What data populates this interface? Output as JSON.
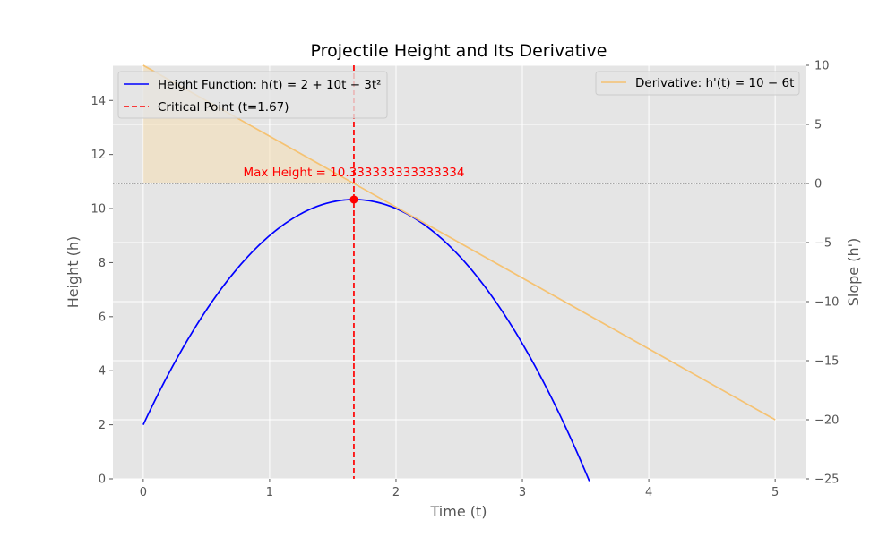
{
  "chart_data": {
    "type": "line",
    "title": "Projectile Height and Its Derivative",
    "xlabel": "Time (t)",
    "ylabel_left": "Height (h)",
    "ylabel_right": "Slope (h')",
    "xlim": [
      -0.24,
      5.24
    ],
    "ylim_left": [
      0,
      15.3
    ],
    "ylim_right": [
      -25,
      10
    ],
    "x_ticks": [
      0,
      1,
      2,
      3,
      4,
      5
    ],
    "y_ticks_left": [
      0,
      2,
      4,
      6,
      8,
      10,
      12,
      14
    ],
    "y_ticks_right": [
      -25,
      -20,
      -15,
      -10,
      -5,
      0,
      5,
      10
    ],
    "y_ticks_right_labels": [
      "−25",
      "−20",
      "−15",
      "−10",
      "−5",
      "0",
      "5",
      "10"
    ],
    "grid": true,
    "style": "ggplot",
    "series": [
      {
        "name": "Height Function: h(t) = 2 + 10t − 3t²",
        "axis": "left",
        "color": "#0000ff",
        "x": [
          0,
          0.25,
          0.5,
          0.75,
          1.0,
          1.25,
          1.5,
          1.667,
          1.75,
          2.0,
          2.25,
          2.5,
          2.75,
          3.0,
          3.25,
          3.5,
          3.53
        ],
        "y": [
          2.0,
          4.31,
          6.25,
          7.81,
          9.0,
          9.81,
          10.25,
          10.333,
          10.31,
          10.0,
          9.31,
          8.25,
          6.81,
          5.0,
          2.81,
          0.25,
          0.0
        ]
      },
      {
        "name": "Derivative: h'(t) = 10 − 6t",
        "axis": "right",
        "color": "#f5c272",
        "x": [
          0,
          5
        ],
        "y": [
          10,
          -20
        ]
      }
    ],
    "critical_point": {
      "label": "Critical Point (t=1.67)",
      "t": 1.6667,
      "height": 10.333,
      "color": "#ff0000"
    },
    "annotation": {
      "text": "Max Height = 10.333333333333334",
      "x": 1.6667,
      "y": 11.2,
      "color": "#ff0000"
    },
    "zero_slope_line": 0,
    "shaded_region": {
      "x_from": 0,
      "x_to": 1.6667,
      "color": "#f5deb3"
    },
    "legend_left_placement": "top-left",
    "legend_right_placement": "top-right"
  }
}
